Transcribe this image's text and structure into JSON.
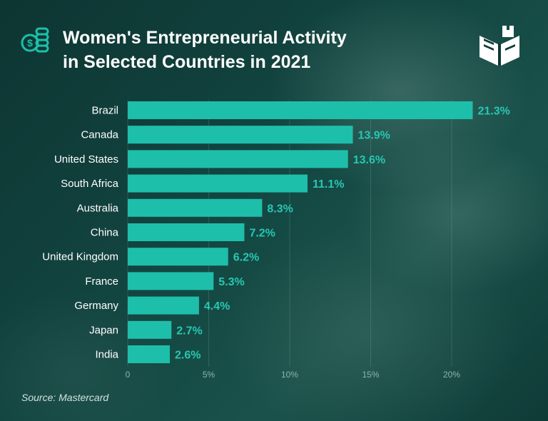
{
  "header": {
    "title_line1": "Women's Entrepreneurial Activity",
    "title_line2": "in Selected Countries in 2021"
  },
  "source": "Source: Mastercard",
  "colors": {
    "bar": "#1dbfab",
    "value_label": "#27c7b3",
    "text": "#ffffff",
    "tick": "#8fb5ae"
  },
  "icons": {
    "header": "money-coins-icon",
    "logo": "book-castle-logo-icon"
  },
  "chart_data": {
    "type": "bar",
    "orientation": "horizontal",
    "categories": [
      "Brazil",
      "Canada",
      "United States",
      "South Africa",
      "Australia",
      "China",
      "United Kingdom",
      "France",
      "Germany",
      "Japan",
      "India"
    ],
    "values": [
      21.3,
      13.9,
      13.6,
      11.1,
      8.3,
      7.2,
      6.2,
      5.3,
      4.4,
      2.7,
      2.6
    ],
    "value_labels": [
      "21.3%",
      "13.9%",
      "13.6%",
      "11.1%",
      "8.3%",
      "7.2%",
      "6.2%",
      "5.3%",
      "4.4%",
      "2.7%",
      "2.6%"
    ],
    "xlim": [
      0,
      25
    ],
    "xticks": [
      0,
      5,
      10,
      15,
      20
    ],
    "xtick_labels": [
      "0",
      "5%",
      "10%",
      "15%",
      "20%"
    ],
    "grid": true,
    "legend": "none"
  }
}
